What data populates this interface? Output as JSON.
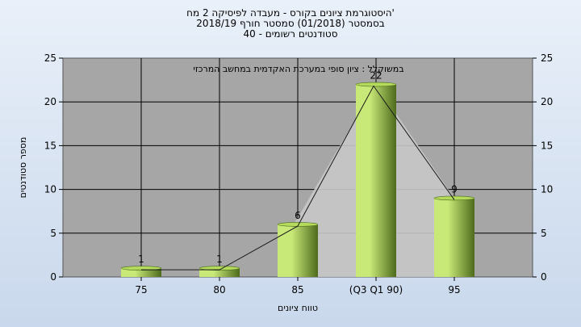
{
  "header": {
    "line1": "היסטוגרמת ציונים בקורס - מעבדה לפיסיקה 2 מח'",
    "line2": "בסמסטר  (01/2018)  סמסטר חורף  2018/19",
    "line3": "סטודנטים רשומים - 40"
  },
  "chart_data": {
    "type": "bar",
    "title": "במשוקלל : ציון סופי במערכת האקדמית במחשב המרכזי",
    "xlabel": "טווח ציונים",
    "ylabel": "מספר סטודנטים",
    "categories": [
      "75",
      "80",
      "85",
      "(Q3 Q1 90)",
      "95"
    ],
    "series": [
      {
        "values": [
          1,
          1,
          6,
          22,
          9
        ]
      }
    ],
    "data_labels": [
      "1",
      "1",
      "6",
      "22",
      "9"
    ],
    "ylim": [
      0,
      25
    ],
    "yticks": [
      0,
      5,
      10,
      15,
      20,
      25
    ],
    "y2ticks": [
      0,
      5,
      10,
      15,
      20,
      25
    ],
    "grid": true,
    "legend": "none",
    "colors": {
      "plot_bg": "#a6a6a6",
      "bar_dark": "#4d6b1c",
      "bar_light": "#c8e877",
      "bar_top": "#b5db5c",
      "area_fill": "#c8c8c8",
      "line": "#1a1a1a"
    }
  }
}
